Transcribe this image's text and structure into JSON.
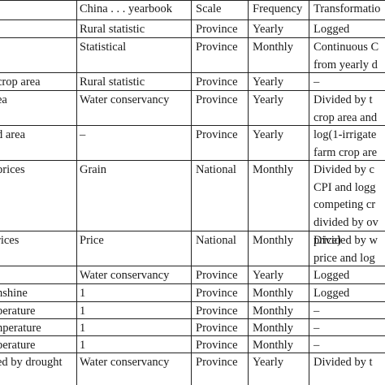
{
  "table": {
    "headers": [
      "",
      "China . . . yearbook",
      "Scale",
      "Frequency",
      "Transformatio"
    ],
    "rows": [
      [
        [
          "",
          ""
        ],
        [
          "Rural statistic",
          ""
        ],
        [
          "Province",
          ""
        ],
        [
          "Yearly",
          ""
        ],
        [
          "Logged",
          ""
        ]
      ],
      [
        [
          "",
          ""
        ],
        [
          "Statistical",
          ""
        ],
        [
          "Province",
          ""
        ],
        [
          "Monthly",
          ""
        ],
        [
          "Continuous C",
          "from yearly d"
        ]
      ],
      [
        [
          "crop area",
          ""
        ],
        [
          "Rural statistic",
          ""
        ],
        [
          "Province",
          ""
        ],
        [
          "Yearly",
          ""
        ],
        [
          "–",
          ""
        ]
      ],
      [
        [
          "ea",
          ""
        ],
        [
          "Water conservancy",
          ""
        ],
        [
          "Province",
          ""
        ],
        [
          "Yearly",
          ""
        ],
        [
          "Divided by t",
          "crop area and"
        ]
      ],
      [
        [
          "d area",
          ""
        ],
        [
          "–",
          ""
        ],
        [
          "Province",
          ""
        ],
        [
          "Yearly",
          ""
        ],
        [
          "log(1-irrigate",
          "farm crop are"
        ]
      ],
      [
        [
          "prices",
          ""
        ],
        [
          "Grain",
          ""
        ],
        [
          "National",
          ""
        ],
        [
          "Monthly",
          ""
        ],
        [
          "Divided by c",
          "CPI and logg",
          "competing cr",
          "divided by ov",
          "price)"
        ]
      ],
      [
        [
          "rices",
          ""
        ],
        [
          "Price",
          ""
        ],
        [
          "National",
          ""
        ],
        [
          "Monthly",
          ""
        ],
        [
          "Divided by w",
          "price and log"
        ]
      ],
      [
        [
          "",
          ""
        ],
        [
          "Water conservancy",
          ""
        ],
        [
          "Province",
          ""
        ],
        [
          "Yearly",
          ""
        ],
        [
          "Logged",
          ""
        ]
      ],
      [
        [
          "nshine",
          ""
        ],
        [
          "1",
          ""
        ],
        [
          "Province",
          ""
        ],
        [
          "Monthly",
          ""
        ],
        [
          "Logged",
          ""
        ]
      ],
      [
        [
          "perature",
          ""
        ],
        [
          "1",
          ""
        ],
        [
          "Province",
          ""
        ],
        [
          "Monthly",
          ""
        ],
        [
          "–",
          ""
        ]
      ],
      [
        [
          "nperature",
          ""
        ],
        [
          "1",
          ""
        ],
        [
          "Province",
          ""
        ],
        [
          "Monthly",
          ""
        ],
        [
          "–",
          ""
        ]
      ],
      [
        [
          "perature",
          ""
        ],
        [
          "1",
          ""
        ],
        [
          "Province",
          ""
        ],
        [
          "Monthly",
          ""
        ],
        [
          "–",
          ""
        ]
      ],
      [
        [
          "ed by drought",
          ""
        ],
        [
          "Water conservancy",
          ""
        ],
        [
          "Province",
          ""
        ],
        [
          "Yearly",
          ""
        ],
        [
          "Divided by t",
          ""
        ]
      ]
    ]
  }
}
